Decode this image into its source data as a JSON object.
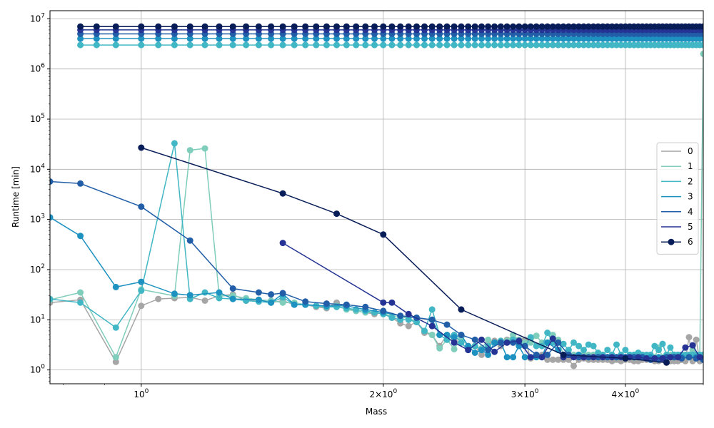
{
  "chart_data": {
    "type": "line",
    "xlabel": "Mass",
    "ylabel": "Runtime [min]",
    "xscale": "log",
    "yscale": "log",
    "xlim": [
      0.77,
      5.0
    ],
    "ylim": [
      0.53,
      14500000
    ],
    "grid": true,
    "legend_position": "center-right",
    "x_major_ticks": [
      {
        "value": 1,
        "label": "10^0"
      },
      {
        "value": 2,
        "label": "2×10^0"
      },
      {
        "value": 3,
        "label": "3×10^0"
      },
      {
        "value": 4,
        "label": "4×10^0"
      }
    ],
    "y_major_ticks": [
      {
        "value": 1,
        "label": "10^0"
      },
      {
        "value": 10,
        "label": "10^1"
      },
      {
        "value": 100,
        "label": "10^2"
      },
      {
        "value": 1000,
        "label": "10^3"
      },
      {
        "value": 10000,
        "label": "10^4"
      },
      {
        "value": 100000,
        "label": "10^5"
      },
      {
        "value": 1000000,
        "label": "10^6"
      },
      {
        "value": 10000000,
        "label": "10^7"
      }
    ],
    "series": [
      {
        "name": "0",
        "color": "#a6a6a6",
        "x": [
          0.77,
          0.84,
          0.93,
          1.0,
          1.05,
          1.1,
          1.15,
          1.2,
          1.25,
          1.3,
          1.35,
          1.4,
          1.45,
          1.5,
          1.55,
          1.6,
          1.65,
          1.7,
          1.75,
          1.8,
          1.85,
          1.9,
          1.95,
          2.0,
          2.05,
          2.1,
          2.15,
          2.2,
          2.25,
          2.3,
          2.35,
          2.4,
          2.45,
          2.5,
          2.55,
          2.6,
          2.65,
          2.7,
          2.75,
          2.8,
          2.85,
          2.9,
          2.95,
          3.0,
          3.05,
          3.1,
          3.15,
          3.2,
          3.25,
          3.3,
          3.35,
          3.4,
          3.45,
          3.5,
          3.55,
          3.6,
          3.65,
          3.7,
          3.75,
          3.8,
          3.85,
          3.9,
          3.95,
          4.0,
          4.05,
          4.1,
          4.15,
          4.2,
          4.25,
          4.3,
          4.35,
          4.4,
          4.45,
          4.5,
          4.55,
          4.6,
          4.65,
          4.7,
          4.75,
          4.8,
          4.85,
          4.9,
          4.95,
          5.0
        ],
        "y": [
          22,
          25,
          1.45,
          19,
          26,
          27,
          28,
          24,
          30,
          32,
          24,
          25,
          22,
          24,
          20,
          20,
          18,
          17,
          22,
          17,
          15,
          14,
          13,
          14,
          11,
          8.5,
          7.5,
          9,
          5.5,
          5.0,
          3.0,
          5.0,
          4.0,
          3.5,
          2.5,
          3.0,
          2.0,
          3.5,
          3.8,
          3.0,
          4.0,
          3.5,
          4.0,
          4.0,
          1.7,
          2.0,
          2.0,
          1.6,
          1.6,
          1.6,
          1.6,
          1.6,
          1.2,
          1.6,
          1.7,
          1.6,
          1.6,
          1.6,
          1.6,
          1.6,
          1.5,
          1.6,
          1.5,
          1.6,
          1.6,
          1.5,
          1.5,
          1.6,
          1.6,
          1.6,
          1.5,
          1.5,
          1.6,
          1.6,
          1.5,
          1.5,
          1.5,
          1.6,
          1.5,
          4.5,
          1.5,
          4.0,
          1.5,
          2.0
        ]
      },
      {
        "name": "1",
        "color": "#7fcdbb",
        "x": [
          0.77,
          0.84,
          0.93,
          1.0,
          1.1,
          1.15,
          1.2,
          1.25,
          1.3,
          1.35,
          1.4,
          1.45,
          1.5,
          1.55,
          1.6,
          1.65,
          1.7,
          1.75,
          1.8,
          1.85,
          1.9,
          1.95,
          2.0,
          2.05,
          2.1,
          2.15,
          2.2,
          2.25,
          2.3,
          2.35,
          2.4,
          2.45,
          2.5,
          2.55,
          2.6,
          2.65,
          2.7,
          2.75,
          2.8,
          2.85,
          2.9,
          2.95,
          3.0,
          3.05,
          3.1,
          3.15,
          3.2,
          3.25,
          3.3,
          3.35,
          3.4,
          3.45,
          3.5,
          3.55,
          3.6,
          3.65,
          3.7,
          3.75,
          3.8,
          3.85,
          3.9,
          3.95,
          4.0,
          4.05,
          4.1,
          4.15,
          4.2,
          4.25,
          4.3,
          4.35,
          4.4,
          4.45,
          4.5,
          4.55,
          4.6,
          4.65,
          4.7,
          4.75,
          4.8,
          4.85,
          4.9,
          4.95,
          5.0
        ],
        "y": [
          25,
          35,
          1.8,
          40,
          30,
          24000,
          26000,
          30,
          30,
          27,
          25,
          24,
          22,
          22,
          20,
          19,
          18,
          19,
          16,
          15,
          14,
          14,
          13,
          12,
          11,
          11,
          9,
          6,
          5,
          2.7,
          4,
          2.6,
          4.5,
          3,
          3,
          2.7,
          4,
          3.5,
          3.5,
          3.8,
          5.0,
          4.0,
          3.5,
          3.5,
          4.8,
          3.5,
          3.5,
          5.0,
          4.0,
          2.0,
          2.0,
          2.0,
          2.0,
          2.0,
          2.0,
          2.0,
          1.9,
          1.8,
          1.8,
          1.8,
          1.8,
          1.8,
          1.8,
          2.0,
          1.8,
          1.8,
          2.0,
          1.8,
          2.0,
          1.8,
          2.8,
          1.8,
          2.0,
          2.0,
          2.0,
          2.0,
          2.0,
          1.9,
          1.8,
          2.5,
          2.0,
          2.0,
          2000000
        ]
      },
      {
        "name": "2",
        "color": "#41b6c4",
        "x": [
          0.77,
          0.84,
          0.93,
          1.0,
          1.1,
          1.15,
          1.2,
          1.25,
          1.3,
          1.35,
          1.4,
          1.45,
          1.5,
          1.55,
          1.6,
          1.65,
          1.7,
          1.75,
          1.8,
          1.85,
          1.9,
          1.95,
          2.0,
          2.05,
          2.1,
          2.15,
          2.2,
          2.25,
          2.3,
          2.35,
          2.4,
          2.45,
          2.5,
          2.55,
          2.6,
          2.65,
          2.7,
          2.75,
          2.8,
          2.85,
          2.9,
          2.95,
          3.0,
          3.05,
          3.1,
          3.15,
          3.2,
          3.25,
          3.3,
          3.35,
          3.4,
          3.45,
          3.5,
          3.55,
          3.6,
          3.65,
          3.7,
          3.75,
          3.8,
          3.85,
          3.9,
          3.95,
          4.0,
          4.05,
          4.1,
          4.15,
          4.2,
          4.25,
          4.3,
          4.35,
          4.4,
          4.45,
          4.5,
          4.55,
          4.6,
          4.65,
          4.7,
          4.75,
          4.8,
          4.85,
          4.9,
          4.95,
          5.0
        ],
        "y": [
          26,
          22,
          7,
          38,
          33000,
          26,
          35,
          27,
          26,
          24,
          23,
          22,
          28,
          20,
          20,
          19,
          18,
          18,
          17,
          16,
          15,
          14,
          13,
          11,
          10,
          10,
          9,
          6,
          16,
          5,
          4,
          5,
          3.5,
          2.5,
          3,
          2.5,
          3,
          3.5,
          3.8,
          3.5,
          4.0,
          3.5,
          3.0,
          4.5,
          3.0,
          3.0,
          5.5,
          3.5,
          2.5,
          3.3,
          2.5,
          3.5,
          3.0,
          2.5,
          3.2,
          3.0,
          2.2,
          2.0,
          2.5,
          2.0,
          3.2,
          2.0,
          2.5,
          2.0,
          2.0,
          2.2,
          2.0,
          2.0,
          2.0,
          3.0,
          2.5,
          3.3,
          2.0,
          2.8,
          2.0,
          2.0,
          2.0,
          2.0,
          2.0,
          2.0,
          2.0,
          2.0,
          2.0
        ]
      },
      {
        "name": "3",
        "color": "#1d91c0",
        "x": [
          0.77,
          0.84,
          0.93,
          1.0,
          1.1,
          1.15,
          1.25,
          1.3,
          1.4,
          1.45,
          1.5,
          1.55,
          1.6,
          1.7,
          1.8,
          1.9,
          2.0,
          2.1,
          2.2,
          2.3,
          2.35,
          2.4,
          2.45,
          2.5,
          2.55,
          2.6,
          2.65,
          2.7,
          2.75,
          2.8,
          2.85,
          2.9,
          2.95,
          3.0,
          3.1,
          3.15,
          3.2,
          3.3,
          3.35,
          3.4,
          3.5,
          3.6,
          3.7,
          3.8,
          3.9,
          4.0,
          4.1,
          4.2,
          4.3,
          4.4,
          4.5,
          4.6,
          4.7,
          4.8,
          4.9,
          5.0
        ],
        "y": [
          1100,
          470,
          45,
          57,
          33,
          31,
          35,
          26,
          25,
          22,
          33,
          20,
          20,
          19,
          19,
          16,
          14,
          12,
          11,
          10,
          5,
          5,
          4.5,
          5,
          3,
          2.2,
          2.5,
          2.0,
          3.5,
          3.5,
          1.8,
          1.8,
          3.0,
          1.8,
          1.8,
          1.8,
          3.5,
          2.5,
          2.0,
          2.0,
          2.0,
          1.8,
          1.8,
          1.8,
          1.8,
          1.8,
          1.8,
          1.8,
          1.8,
          1.8,
          1.8,
          1.8,
          1.8,
          1.8,
          1.8,
          1.6
        ]
      },
      {
        "name": "4",
        "color": "#225ea8",
        "x": [
          0.77,
          0.84,
          1.0,
          1.15,
          1.3,
          1.4,
          1.45,
          1.5,
          1.6,
          1.7,
          1.8,
          1.9,
          2.0,
          2.1,
          2.2,
          2.3,
          2.4,
          2.5,
          2.6,
          2.7,
          2.8,
          2.9,
          3.0,
          3.1,
          3.2,
          3.3,
          3.4,
          3.5,
          3.6,
          3.7,
          3.8,
          3.9,
          4.0,
          4.1,
          4.2,
          4.3,
          4.4,
          4.5,
          4.6,
          4.7,
          4.8,
          4.9,
          5.0
        ],
        "y": [
          5700,
          5200,
          1800,
          380,
          42,
          35,
          32,
          34,
          23,
          21,
          20,
          18,
          15,
          12,
          11,
          10,
          8,
          5,
          4,
          2.5,
          3.5,
          3.5,
          3.0,
          2.0,
          2.0,
          3.5,
          2.0,
          1.8,
          1.8,
          1.8,
          1.8,
          1.8,
          1.8,
          1.8,
          1.8,
          1.6,
          1.6,
          1.8,
          1.8,
          1.7,
          1.8,
          1.7,
          1.6
        ]
      },
      {
        "name": "5",
        "color": "#253494",
        "x": [
          1.5,
          2.0,
          2.05,
          2.15,
          2.3,
          2.45,
          2.55,
          2.65,
          2.75,
          2.85,
          2.95,
          3.05,
          3.15,
          3.25,
          3.35,
          3.45,
          3.55,
          3.65,
          3.75,
          3.85,
          3.95,
          4.05,
          4.15,
          4.25,
          4.35,
          4.45,
          4.55,
          4.65,
          4.75,
          4.85,
          4.95
        ],
        "y": [
          340,
          22,
          22,
          13,
          7.5,
          3.5,
          2.5,
          4.0,
          2.3,
          3.5,
          3.8,
          1.8,
          1.8,
          4.2,
          1.8,
          1.8,
          1.8,
          1.8,
          1.8,
          1.8,
          1.8,
          1.8,
          1.8,
          1.7,
          1.7,
          1.7,
          1.8,
          1.8,
          2.8,
          3.1,
          1.8
        ]
      },
      {
        "name": "6",
        "color": "#081d58",
        "x": [
          1.0,
          1.5,
          1.75,
          2.0,
          2.5,
          3.35,
          4.0,
          4.5
        ],
        "y": [
          27000,
          3300,
          1300,
          500,
          16,
          2.0,
          1.7,
          1.4
        ]
      }
    ],
    "top_band_lines": [
      {
        "color": "#41b6c4",
        "y": 3000000
      },
      {
        "color": "#1d91c0",
        "y": 4000000
      },
      {
        "color": "#225ea8",
        "y": 5000000
      },
      {
        "color": "#253494",
        "y": 6000000
      },
      {
        "color": "#081d58",
        "y": 7000000
      }
    ],
    "top_band_x": [
      0.84,
      0.88,
      0.93,
      1.0,
      1.05,
      1.1,
      1.15,
      1.2,
      1.25,
      1.3,
      1.35,
      1.4,
      1.45,
      1.5,
      1.55,
      1.6,
      1.65,
      1.7,
      1.75,
      1.8,
      1.85,
      1.9,
      1.95,
      2.0,
      2.05,
      2.1,
      2.15,
      2.2,
      2.25,
      2.3,
      2.35,
      2.4,
      2.45,
      2.5,
      2.55,
      2.6,
      2.65,
      2.7,
      2.75,
      2.8,
      2.85,
      2.9,
      2.95,
      3.0,
      3.05,
      3.1,
      3.15,
      3.2,
      3.25,
      3.3,
      3.35,
      3.4,
      3.45,
      3.5,
      3.55,
      3.6,
      3.65,
      3.7,
      3.75,
      3.8,
      3.85,
      3.9,
      3.95,
      4.0,
      4.05,
      4.1,
      4.15,
      4.2,
      4.25,
      4.3,
      4.35,
      4.4,
      4.45,
      4.5,
      4.55,
      4.6,
      4.65,
      4.7,
      4.75,
      4.8,
      4.85,
      4.9,
      4.95,
      5.0
    ]
  }
}
